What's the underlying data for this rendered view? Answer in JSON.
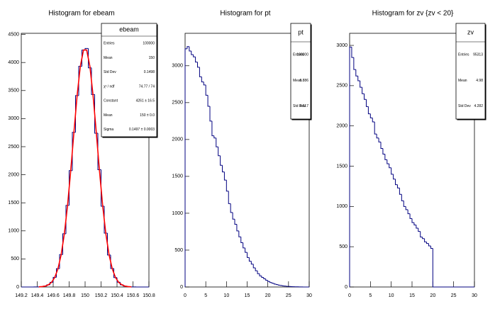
{
  "chart_data": [
    {
      "type": "histogram",
      "title": "Histogram for ebeam",
      "color": "#000080",
      "bins": [
        149.2,
        149.24,
        149.28,
        149.32,
        149.36,
        149.4,
        149.44,
        149.48,
        149.52,
        149.56,
        149.6,
        149.64,
        149.68,
        149.72,
        149.76,
        149.8,
        149.84,
        149.88,
        149.92,
        149.96,
        150,
        150.04,
        150.08,
        150.12,
        150.16,
        150.2,
        150.24,
        150.28,
        150.32,
        150.36,
        150.4,
        150.44,
        150.48,
        150.52,
        150.56,
        150.6,
        150.64,
        150.68,
        150.72,
        150.76,
        150.8
      ],
      "values": [
        0,
        0,
        0,
        0,
        1,
        2,
        7,
        16,
        39,
        84,
        172,
        326,
        577,
        949,
        1453,
        2074,
        2756,
        3411,
        3932,
        4222,
        4250,
        3905,
        3430,
        2740,
        2090,
        1440,
        960,
        570,
        330,
        168,
        86,
        40,
        15,
        6,
        2,
        1,
        0,
        0,
        0,
        0
      ],
      "fit": {
        "color": "#ff0000",
        "x": [
          149.42,
          149.46,
          149.5,
          149.54,
          149.58,
          149.62,
          149.66,
          149.7,
          149.74,
          149.78,
          149.82,
          149.86,
          149.9,
          149.94,
          149.98,
          150.02,
          150.06,
          150.1,
          150.14,
          150.18,
          150.22,
          150.26,
          150.3,
          150.34,
          150.38,
          150.42,
          150.46,
          150.5,
          150.54,
          150.58
        ],
        "values": [
          2,
          7,
          16,
          39,
          84,
          172,
          326,
          577,
          949,
          1453,
          2074,
          2756,
          3411,
          3932,
          4222,
          4222,
          3932,
          3411,
          2756,
          2074,
          1453,
          949,
          577,
          326,
          172,
          84,
          39,
          16,
          7,
          2
        ]
      },
      "xlim": [
        149.2,
        150.8
      ],
      "xticks": [
        149.2,
        149.4,
        149.6,
        149.8,
        150,
        150.2,
        150.4,
        150.6,
        150.8
      ],
      "ylim": [
        0,
        4520
      ],
      "yticks": [
        0,
        500,
        1000,
        1500,
        2000,
        2500,
        3000,
        3500,
        4000,
        4500
      ],
      "stats": {
        "title": "ebeam",
        "rows": [
          {
            "label": "Entries",
            "value": "100000"
          },
          {
            "label": "Mean",
            "value": "150"
          },
          {
            "label": "Std Dev",
            "value": "0.1498"
          },
          {
            "label": "χ² / ndf",
            "value": "74.77 / 74"
          },
          {
            "label": "Constant",
            "value": "4261 ± 16.5"
          },
          {
            "label": "Mean",
            "value": "150 ± 0.0"
          },
          {
            "label": "Sigma",
            "value": "0.1497 ± 0.0003"
          }
        ]
      }
    },
    {
      "type": "histogram",
      "title": "Histogram for pt",
      "color": "#000080",
      "bins": [
        0,
        0.5,
        1,
        1.5,
        2,
        2.5,
        3,
        3.5,
        4,
        4.5,
        5,
        5.5,
        6,
        6.5,
        7,
        7.5,
        8,
        8.5,
        9,
        9.5,
        10,
        10.5,
        11,
        11.5,
        12,
        12.5,
        13,
        13.5,
        14,
        14.5,
        15,
        15.5,
        16,
        16.5,
        17,
        17.5,
        18,
        18.5,
        19,
        19.5,
        20,
        20.5,
        21,
        21.5,
        22,
        22.5,
        23,
        23.5,
        24,
        24.5,
        25,
        25.5,
        26,
        26.5,
        27,
        27.5,
        28,
        28.5,
        29,
        29.5,
        30
      ],
      "values": [
        3230,
        3260,
        3200,
        3150,
        3120,
        3050,
        2980,
        2850,
        2780,
        2740,
        2600,
        2450,
        2250,
        2050,
        2020,
        1900,
        1780,
        1650,
        1560,
        1450,
        1300,
        1130,
        1010,
        920,
        850,
        760,
        680,
        600,
        530,
        470,
        400,
        350,
        310,
        260,
        220,
        180,
        150,
        130,
        110,
        90,
        75,
        60,
        50,
        40,
        32,
        25,
        20,
        15,
        12,
        9,
        7,
        5,
        4,
        3,
        2,
        1,
        1,
        0,
        0,
        0
      ],
      "xlim": [
        0,
        30
      ],
      "xticks": [
        0,
        5,
        10,
        15,
        20,
        25,
        30
      ],
      "ylim": [
        0,
        3440
      ],
      "yticks": [
        0,
        500,
        1000,
        1500,
        2000,
        2500,
        3000
      ],
      "stats": {
        "title": "pt",
        "rows": [
          {
            "label": "Entries",
            "value": "100000"
          },
          {
            "label": "Mean",
            "value": "6.886"
          },
          {
            "label": "Std Dev",
            "value": "4.917"
          }
        ]
      }
    },
    {
      "type": "histogram",
      "title": "Histogram for zv {zv < 20}",
      "color": "#000080",
      "bins": [
        0,
        0.5,
        1,
        1.5,
        2,
        2.5,
        3,
        3.5,
        4,
        4.5,
        5,
        5.5,
        6,
        6.5,
        7,
        7.5,
        8,
        8.5,
        9,
        9.5,
        10,
        10.5,
        11,
        11.5,
        12,
        12.5,
        13,
        13.5,
        14,
        14.5,
        15,
        15.5,
        16,
        16.5,
        17,
        17.5,
        18,
        18.5,
        19,
        19.5,
        20,
        20.5,
        21,
        21.5,
        22,
        22.5,
        23,
        23.5,
        24,
        24.5,
        25,
        25.5,
        26,
        26.5,
        27,
        27.5,
        28,
        28.5,
        29,
        29.5,
        30
      ],
      "values": [
        2980,
        2850,
        2700,
        2620,
        2560,
        2480,
        2400,
        2330,
        2240,
        2150,
        2100,
        2050,
        1900,
        1850,
        1800,
        1720,
        1650,
        1580,
        1530,
        1480,
        1400,
        1340,
        1270,
        1230,
        1150,
        1070,
        1000,
        960,
        910,
        850,
        800,
        770,
        730,
        690,
        620,
        600,
        560,
        540,
        510,
        480,
        0,
        0,
        0,
        0,
        0,
        0,
        0,
        0,
        0,
        0,
        0,
        0,
        0,
        0,
        0,
        0,
        0,
        0,
        0,
        0
      ],
      "xlim": [
        0,
        30
      ],
      "xticks": [
        0,
        5,
        10,
        15,
        20,
        25,
        30
      ],
      "ylim": [
        0,
        3150
      ],
      "yticks": [
        0,
        500,
        1000,
        1500,
        2000,
        2500,
        3000
      ],
      "stats": {
        "title": "zv",
        "rows": [
          {
            "label": "Entries",
            "value": "95313"
          },
          {
            "label": "Mean",
            "value": "4.98"
          },
          {
            "label": "Std Dev",
            "value": "4.282"
          }
        ]
      }
    }
  ]
}
